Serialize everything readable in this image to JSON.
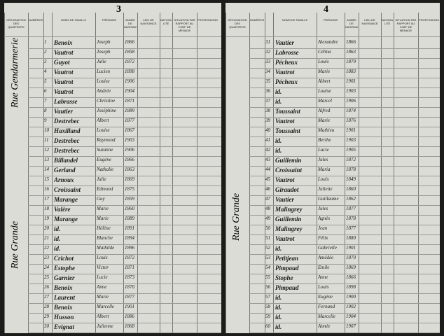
{
  "left_page": {
    "page_number": "3",
    "streets": [
      "Rue Gendarmerie",
      "Rue Grande"
    ],
    "headers": [
      "DÉSIGNATION DES QUARTIERS",
      "NUMÉROS",
      "NOMS DE FAMILLE",
      "PRÉNOMS",
      "ANNÉE DE NAISSANCE",
      "LIEU DE NAISSANCE",
      "NATIONA-LITÉ",
      "SITUATION PAR RAPPORT AU CHEF DE MÉNAGE",
      "PROFESSIONS"
    ],
    "rows": [
      [
        "1",
        "Benoix",
        "Joseph",
        "1866"
      ],
      [
        "2",
        "Vautrot",
        "Joseph",
        "1858"
      ],
      [
        "3",
        "Guyot",
        "Julie",
        "1872"
      ],
      [
        "4",
        "Vautrot",
        "Lucien",
        "1898"
      ],
      [
        "5",
        "Vautrot",
        "Louise",
        "1906"
      ],
      [
        "6",
        "Vautrot",
        "Andrée",
        "1904"
      ],
      [
        "7",
        "Labrasse",
        "Christine",
        "1871"
      ],
      [
        "8",
        "Vautier",
        "Joséphine",
        "1889"
      ],
      [
        "9",
        "Destrebec",
        "Albert",
        "1877"
      ],
      [
        "10",
        "Haxilland",
        "Louise",
        "1867"
      ],
      [
        "11",
        "Destrebec",
        "Raymond",
        "1903"
      ],
      [
        "12",
        "Destrebec",
        "Suzanne",
        "1906"
      ],
      [
        "13",
        "Billandel",
        "Eugène",
        "1866"
      ],
      [
        "14",
        "Gerland",
        "Nathalie",
        "1863"
      ],
      [
        "15",
        "Arnoux",
        "Julie",
        "1869"
      ],
      [
        "16",
        "Croissaint",
        "Edmond",
        "1875"
      ],
      [
        "17",
        "Marange",
        "Guy",
        "1859"
      ],
      [
        "18",
        "Valère",
        "Marie",
        "1860"
      ],
      [
        "19",
        "Marange",
        "Marie",
        "1889"
      ],
      [
        "20",
        "id.",
        "Hélène",
        "1891"
      ],
      [
        "21",
        "id.",
        "Blanche",
        "1894"
      ],
      [
        "22",
        "id.",
        "Mathilde",
        "1896"
      ],
      [
        "23",
        "Crichot",
        "Louis",
        "1872"
      ],
      [
        "24",
        "Estophe",
        "Victor",
        "1871"
      ],
      [
        "25",
        "Garnier",
        "Lucie",
        "1873"
      ],
      [
        "26",
        "Benoix",
        "Anne",
        "1870"
      ],
      [
        "27",
        "Laurent",
        "Marie",
        "1877"
      ],
      [
        "28",
        "Benoix",
        "Marcelle",
        "1901"
      ],
      [
        "29",
        "Husson",
        "Albert",
        "1886"
      ],
      [
        "30",
        "Evignat",
        "Julienne",
        "1868"
      ]
    ]
  },
  "right_page": {
    "page_number": "4",
    "streets": [
      "Rue Grande"
    ],
    "headers": [
      "DÉSIGNATION DES QUARTIERS",
      "NUMÉROS",
      "NOMS DE FAMILLE",
      "PRÉNOMS",
      "ANNÉE DE NAISSANCE",
      "LIEU DE NAISSANCE",
      "NATIONA-LITÉ",
      "SITUATION PAR RAPPORT AU CHEF DE MÉNAGE",
      "PROFESSIONS"
    ],
    "rows": [
      [
        "31",
        "Vautier",
        "Alexandre",
        "1866"
      ],
      [
        "32",
        "Labrosse",
        "Célina",
        "1863"
      ],
      [
        "33",
        "Pécheux",
        "Louis",
        "1879"
      ],
      [
        "34",
        "Vautrot",
        "Marie",
        "1883"
      ],
      [
        "35",
        "Pécheux",
        "Albert",
        "1901"
      ],
      [
        "36",
        "id.",
        "Louise",
        "1903"
      ],
      [
        "37",
        "id.",
        "Marcel",
        "1906"
      ],
      [
        "38",
        "Toussaint",
        "Alfred",
        "1874"
      ],
      [
        "39",
        "Vautrot",
        "Marie",
        "1876"
      ],
      [
        "40",
        "Toussaint",
        "Mathieu",
        "1901"
      ],
      [
        "41",
        "id.",
        "Berthe",
        "1903"
      ],
      [
        "42",
        "id.",
        "Lucie",
        "1905"
      ],
      [
        "43",
        "Guillemin",
        "Jules",
        "1872"
      ],
      [
        "44",
        "Croissaint",
        "Maria",
        "1878"
      ],
      [
        "45",
        "Vautrot",
        "Louis",
        "1849"
      ],
      [
        "46",
        "Giraudot",
        "Juliette",
        "1860"
      ],
      [
        "47",
        "Vautier",
        "Guillaume",
        "1862"
      ],
      [
        "48",
        "Malingrey",
        "Jules",
        "1877"
      ],
      [
        "49",
        "Guillemin",
        "Agnès",
        "1878"
      ],
      [
        "50",
        "Malingrey",
        "Jean",
        "1877"
      ],
      [
        "51",
        "Vautrot",
        "Félix",
        "1880"
      ],
      [
        "52",
        "id.",
        "Gabrielle",
        "1901"
      ],
      [
        "53",
        "Petitjean",
        "Amédée",
        "1870"
      ],
      [
        "54",
        "Pimpaud",
        "Emile",
        "1869"
      ],
      [
        "55",
        "Stophe",
        "Anne",
        "1866"
      ],
      [
        "56",
        "Pimpaud",
        "Louis",
        "1898"
      ],
      [
        "57",
        "id.",
        "Eugène",
        "1900"
      ],
      [
        "58",
        "id.",
        "Fernand",
        "1902"
      ],
      [
        "59",
        "id.",
        "Marcelle",
        "1904"
      ],
      [
        "60",
        "id.",
        "Aimée",
        "1907"
      ]
    ]
  }
}
